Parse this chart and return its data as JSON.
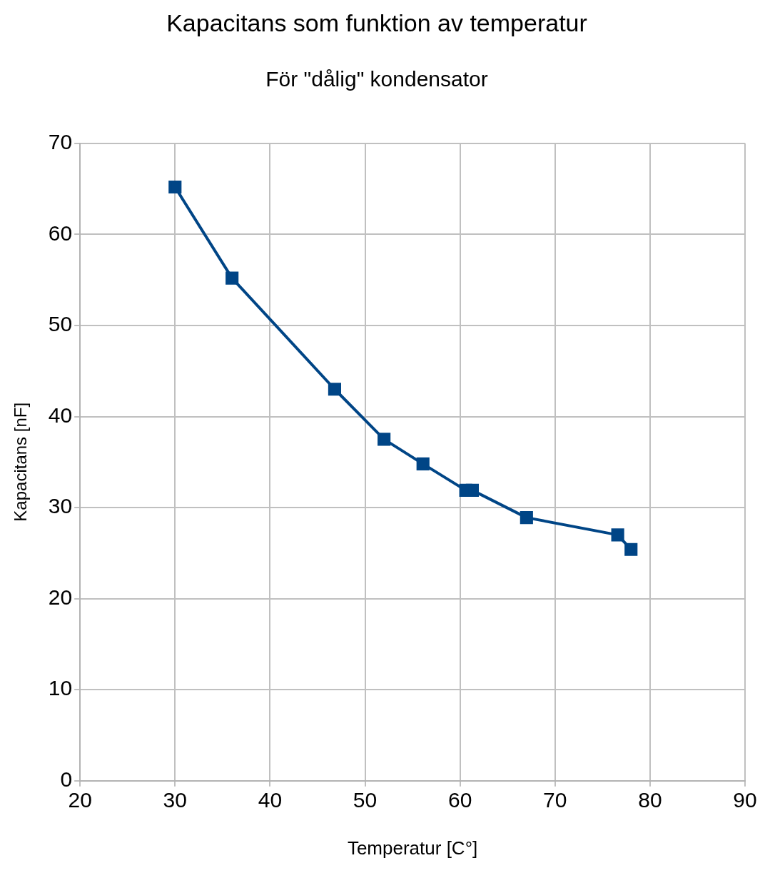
{
  "chart_data": {
    "type": "line",
    "title": "Kapacitans som funktion av temperatur",
    "subtitle": "För \"dålig\" kondensator",
    "xlabel": "Temperatur [C°]",
    "ylabel": "Kapacitans [nF]",
    "x": [
      30,
      36,
      46.8,
      52,
      56.1,
      60.6,
      61.3,
      67,
      76.6,
      78
    ],
    "series": [
      {
        "color": "#004586",
        "values": [
          65.2,
          55.2,
          43,
          37.5,
          34.8,
          31.9,
          31.9,
          28.9,
          27,
          25.4
        ]
      }
    ],
    "xlim": [
      20,
      90
    ],
    "xticks": [
      20,
      30,
      40,
      50,
      60,
      70,
      80,
      90
    ],
    "ylim": [
      0,
      70
    ],
    "yticks": [
      0,
      10,
      20,
      30,
      40,
      50,
      60,
      70
    ],
    "grid": true,
    "legend": false,
    "marker": "square",
    "line_style": "solid"
  }
}
